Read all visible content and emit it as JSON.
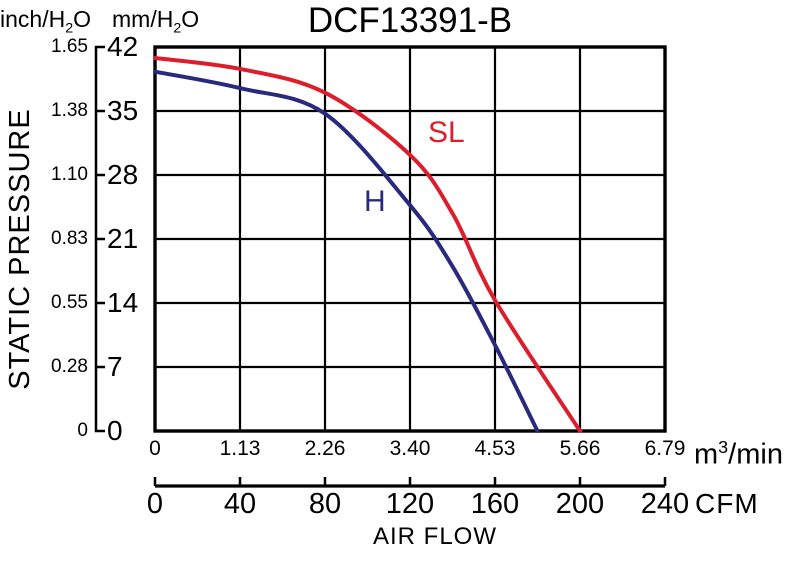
{
  "title": "DCF13391-B",
  "y_axis": {
    "name": "STATIC PRESSURE",
    "inch_unit": {
      "pre": "inch/H",
      "sub": "2",
      "post": "O"
    },
    "mm_unit": {
      "pre": "mm/H",
      "sub": "2",
      "post": "O"
    },
    "inch_ticks": [
      "1.65",
      "1.38",
      "1.10",
      "0.83",
      "0.55",
      "0.28",
      "0"
    ],
    "mm_ticks": [
      "42",
      "35",
      "28",
      "21",
      "14",
      "7",
      "0"
    ]
  },
  "x_axis": {
    "name": "AIR FLOW",
    "m3_ticks": [
      "0",
      "1.13",
      "2.26",
      "3.40",
      "4.53",
      "5.66",
      "6.79"
    ],
    "m3_unit": {
      "pre": "m",
      "sup": "3",
      "post": "/min"
    },
    "cfm_ticks": [
      "0",
      "40",
      "80",
      "120",
      "160",
      "200",
      "240"
    ],
    "cfm_unit": "CFM"
  },
  "chart_data": {
    "type": "line",
    "title": "DCF13391-B",
    "xlabel": "AIR FLOW",
    "ylabel": "STATIC PRESSURE",
    "grid": true,
    "x_units": [
      {
        "name": "m3/min",
        "ticks": [
          0,
          1.13,
          2.26,
          3.4,
          4.53,
          5.66,
          6.79
        ]
      },
      {
        "name": "CFM",
        "ticks": [
          0,
          40,
          80,
          120,
          160,
          200,
          240
        ]
      }
    ],
    "y_units": [
      {
        "name": "inch/H2O",
        "ticks": [
          1.65,
          1.38,
          1.1,
          0.83,
          0.55,
          0.28,
          0
        ]
      },
      {
        "name": "mm/H2O",
        "ticks": [
          42,
          35,
          28,
          21,
          14,
          7,
          0
        ]
      }
    ],
    "xlim_cfm": [
      0,
      240
    ],
    "ylim_mm": [
      0,
      42
    ],
    "series": [
      {
        "name": "SL",
        "color": "#dc1e2c",
        "x_cfm": [
          0,
          40,
          80,
          120,
          140,
          160,
          200
        ],
        "y_mm": [
          40.8,
          39.6,
          37.0,
          30.2,
          23.8,
          14.3,
          0
        ]
      },
      {
        "name": "H",
        "color": "#29297e",
        "x_cfm": [
          0,
          40,
          80,
          120,
          140,
          160,
          180
        ],
        "y_mm": [
          39.3,
          37.5,
          34.7,
          24.7,
          18.0,
          9.4,
          0
        ]
      }
    ]
  }
}
